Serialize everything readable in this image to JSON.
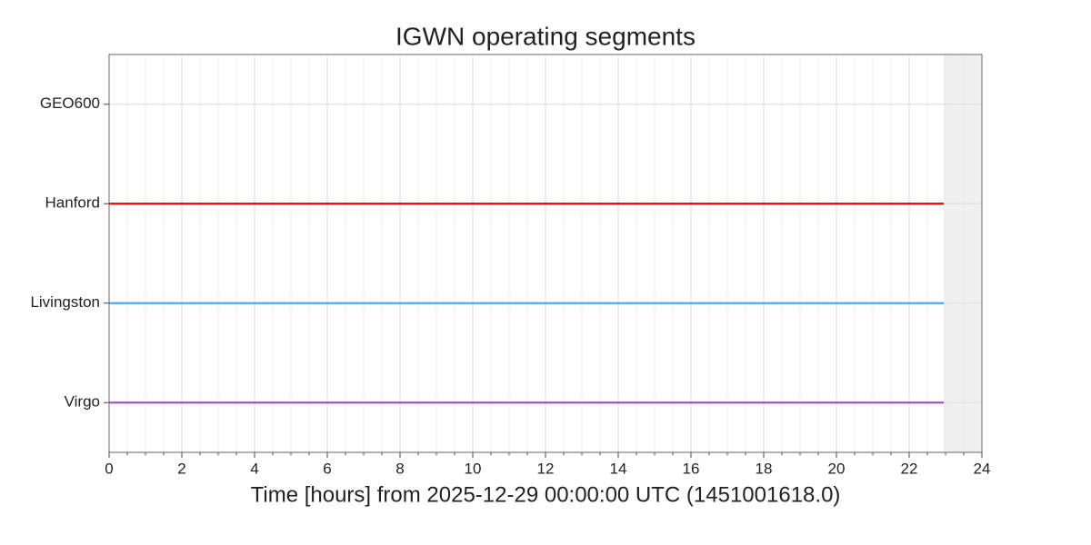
{
  "chart_data": {
    "type": "segments",
    "title": "IGWN operating segments",
    "xlabel": "Time [hours] from 2025-12-29 00:00:00 UTC (1451001618.0)",
    "xlim": [
      0,
      24
    ],
    "xticks": [
      0,
      2,
      4,
      6,
      8,
      10,
      12,
      14,
      16,
      18,
      20,
      22,
      24
    ],
    "minor_step": 0.5,
    "grid": true,
    "shaded_span": [
      22.95,
      24
    ],
    "rows": [
      {
        "label": "GEO600",
        "color": "#888888",
        "segments": []
      },
      {
        "label": "Hanford",
        "color": "#ee0000",
        "segments": [
          [
            0,
            22.95
          ]
        ]
      },
      {
        "label": "Livingston",
        "color": "#4ba6ff",
        "segments": [
          [
            0,
            22.95
          ]
        ]
      },
      {
        "label": "Virgo",
        "color": "#9b59b6",
        "segments": [
          [
            0,
            22.95
          ]
        ]
      }
    ]
  }
}
